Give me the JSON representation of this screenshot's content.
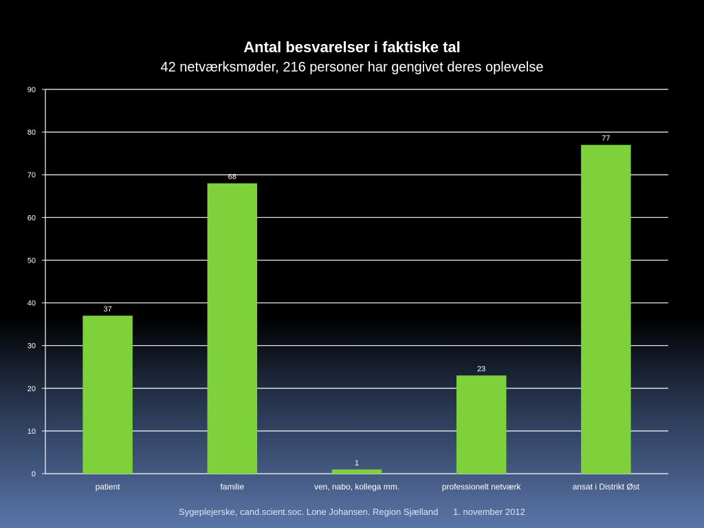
{
  "chart_data": {
    "type": "bar",
    "title": "Antal besvarelser i faktiske tal",
    "subtitle": "42 netværksmøder, 216 personer har gengivet deres oplevelse",
    "categories": [
      "patient",
      "familie",
      "ven, nabo, kollega mm.",
      "professionelt netværk",
      "ansat i Distrikt Øst"
    ],
    "values": [
      37,
      68,
      1,
      23,
      77
    ],
    "data_labels": [
      "37",
      "68",
      "1",
      "23",
      "77"
    ],
    "ylim": [
      0,
      90
    ],
    "yticks": [
      0,
      10,
      20,
      30,
      40,
      50,
      60,
      70,
      80,
      90
    ],
    "ytick_labels": [
      "0",
      "10",
      "20",
      "30",
      "40",
      "50",
      "60",
      "70",
      "80",
      "90"
    ],
    "grid": true,
    "legend": "none",
    "bar_color": "#7fd13b",
    "grid_color": "#ffffff"
  },
  "footer": {
    "author": "Sygeplejerske, cand.scient.soc. Lone Johansen. Region Sjælland",
    "date": "1. november 2012"
  }
}
